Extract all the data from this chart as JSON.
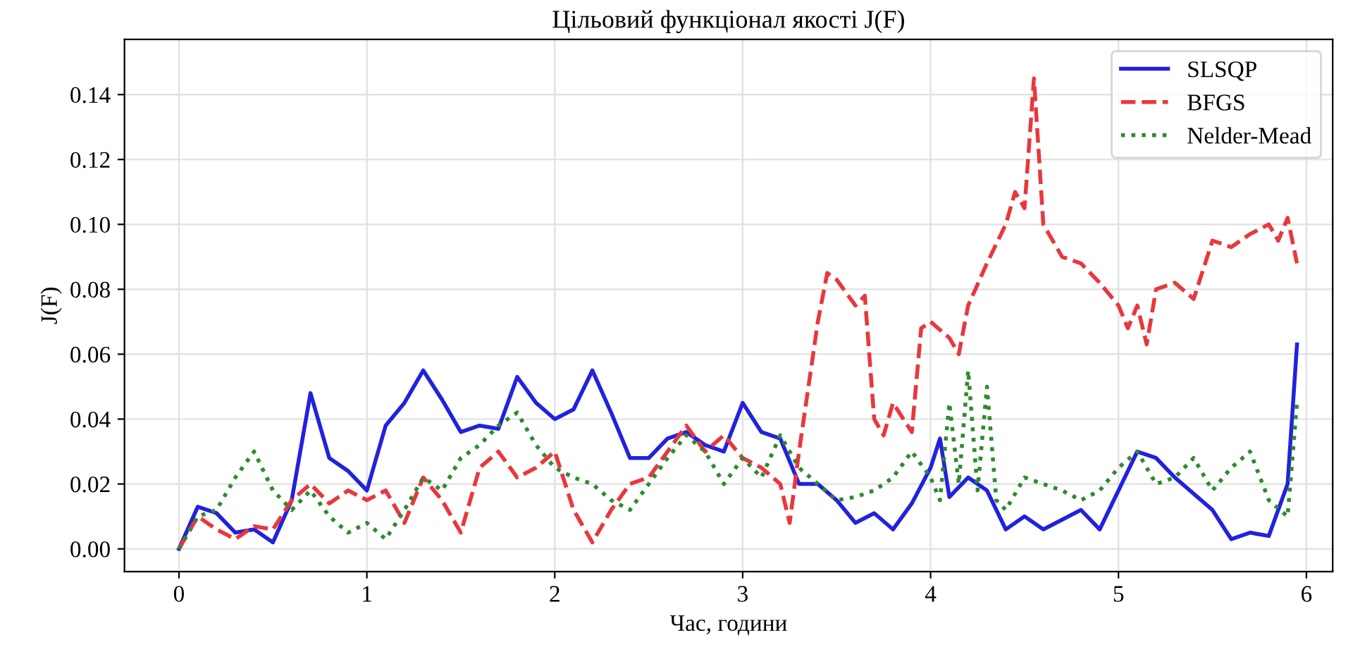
{
  "chart_data": {
    "type": "line",
    "title": "Цільовий функціонал якості J(F)",
    "xlabel": "Час, години",
    "ylabel": "J(F)",
    "xlim": [
      -0.29,
      6.14
    ],
    "ylim": [
      -0.007,
      0.157
    ],
    "xticks": [
      0,
      1,
      2,
      3,
      4,
      5,
      6
    ],
    "yticks": [
      {
        "value": 0,
        "label": "0.00"
      },
      {
        "value": 0.02,
        "label": "0.02"
      },
      {
        "value": 0.04,
        "label": "0.04"
      },
      {
        "value": 0.06,
        "label": "0.06"
      },
      {
        "value": 0.08,
        "label": "0.08"
      },
      {
        "value": 0.1,
        "label": "0.10"
      },
      {
        "value": 0.12,
        "label": "0.12"
      },
      {
        "value": 0.14,
        "label": "0.14"
      }
    ],
    "grid": true,
    "legend": "top right",
    "marker": "none",
    "series": [
      {
        "name": "SLSQP",
        "color": "#2222dd",
        "line_style": "solid",
        "x": [
          0,
          0.1,
          0.2,
          0.3,
          0.4,
          0.5,
          0.6,
          0.7,
          0.8,
          0.9,
          1.0,
          1.1,
          1.2,
          1.3,
          1.4,
          1.5,
          1.6,
          1.7,
          1.8,
          1.9,
          2.0,
          2.1,
          2.2,
          2.3,
          2.4,
          2.5,
          2.6,
          2.7,
          2.8,
          2.9,
          3.0,
          3.1,
          3.2,
          3.3,
          3.4,
          3.5,
          3.6,
          3.7,
          3.8,
          3.9,
          4.0,
          4.05,
          4.1,
          4.2,
          4.3,
          4.4,
          4.5,
          4.6,
          4.7,
          4.8,
          4.9,
          5.0,
          5.1,
          5.2,
          5.3,
          5.4,
          5.5,
          5.6,
          5.7,
          5.8,
          5.9,
          5.95
        ],
        "values": [
          0.0,
          0.013,
          0.011,
          0.005,
          0.006,
          0.002,
          0.015,
          0.048,
          0.028,
          0.024,
          0.018,
          0.038,
          0.045,
          0.055,
          0.046,
          0.036,
          0.038,
          0.037,
          0.053,
          0.045,
          0.04,
          0.043,
          0.055,
          0.042,
          0.028,
          0.028,
          0.034,
          0.036,
          0.032,
          0.03,
          0.045,
          0.036,
          0.034,
          0.02,
          0.02,
          0.015,
          0.008,
          0.011,
          0.006,
          0.014,
          0.025,
          0.034,
          0.016,
          0.022,
          0.018,
          0.006,
          0.01,
          0.006,
          0.009,
          0.012,
          0.006,
          0.018,
          0.03,
          0.028,
          0.022,
          0.017,
          0.012,
          0.003,
          0.005,
          0.004,
          0.02,
          0.063
        ]
      },
      {
        "name": "BFGS",
        "color": "#e8383d",
        "line_style": "dashed",
        "x": [
          0,
          0.1,
          0.2,
          0.3,
          0.4,
          0.5,
          0.6,
          0.7,
          0.8,
          0.9,
          1.0,
          1.1,
          1.2,
          1.3,
          1.4,
          1.5,
          1.6,
          1.7,
          1.8,
          1.9,
          2.0,
          2.1,
          2.2,
          2.3,
          2.4,
          2.5,
          2.6,
          2.7,
          2.8,
          2.9,
          3.0,
          3.1,
          3.2,
          3.25,
          3.3,
          3.4,
          3.45,
          3.5,
          3.6,
          3.65,
          3.7,
          3.75,
          3.8,
          3.9,
          3.95,
          4.0,
          4.1,
          4.15,
          4.2,
          4.3,
          4.4,
          4.45,
          4.5,
          4.55,
          4.6,
          4.7,
          4.8,
          4.9,
          5.0,
          5.05,
          5.1,
          5.15,
          5.2,
          5.3,
          5.4,
          5.5,
          5.6,
          5.7,
          5.8,
          5.85,
          5.9,
          5.95
        ],
        "values": [
          0,
          0.01,
          0.006,
          0.003,
          0.007,
          0.006,
          0.015,
          0.02,
          0.014,
          0.018,
          0.015,
          0.018,
          0.008,
          0.022,
          0.015,
          0.005,
          0.025,
          0.03,
          0.022,
          0.025,
          0.03,
          0.012,
          0.002,
          0.012,
          0.02,
          0.022,
          0.03,
          0.038,
          0.03,
          0.035,
          0.028,
          0.025,
          0.02,
          0.008,
          0.03,
          0.07,
          0.085,
          0.083,
          0.075,
          0.078,
          0.04,
          0.035,
          0.045,
          0.036,
          0.068,
          0.07,
          0.065,
          0.06,
          0.075,
          0.088,
          0.1,
          0.11,
          0.105,
          0.145,
          0.1,
          0.09,
          0.088,
          0.082,
          0.075,
          0.068,
          0.075,
          0.063,
          0.08,
          0.082,
          0.077,
          0.095,
          0.093,
          0.097,
          0.1,
          0.095,
          0.102,
          0.088
        ]
      },
      {
        "name": "Nelder-Mead",
        "color": "#2e8b2e",
        "line_style": "dotted",
        "x": [
          0,
          0.1,
          0.2,
          0.3,
          0.4,
          0.5,
          0.6,
          0.7,
          0.8,
          0.9,
          1.0,
          1.1,
          1.2,
          1.3,
          1.4,
          1.5,
          1.6,
          1.7,
          1.8,
          1.9,
          2.0,
          2.1,
          2.2,
          2.3,
          2.4,
          2.5,
          2.6,
          2.7,
          2.8,
          2.9,
          3.0,
          3.1,
          3.2,
          3.3,
          3.4,
          3.5,
          3.6,
          3.7,
          3.8,
          3.9,
          4.0,
          4.05,
          4.1,
          4.15,
          4.2,
          4.25,
          4.3,
          4.35,
          4.4,
          4.5,
          4.6,
          4.7,
          4.8,
          4.9,
          5.0,
          5.1,
          5.2,
          5.3,
          5.4,
          5.5,
          5.6,
          5.7,
          5.8,
          5.9,
          5.95
        ],
        "values": [
          0,
          0.01,
          0.012,
          0.022,
          0.03,
          0.018,
          0.012,
          0.018,
          0.01,
          0.005,
          0.008,
          0.003,
          0.012,
          0.022,
          0.018,
          0.028,
          0.032,
          0.038,
          0.042,
          0.032,
          0.025,
          0.022,
          0.02,
          0.015,
          0.012,
          0.02,
          0.028,
          0.035,
          0.03,
          0.02,
          0.028,
          0.022,
          0.035,
          0.025,
          0.02,
          0.015,
          0.016,
          0.018,
          0.022,
          0.03,
          0.022,
          0.015,
          0.045,
          0.02,
          0.055,
          0.018,
          0.05,
          0.015,
          0.012,
          0.022,
          0.02,
          0.018,
          0.015,
          0.018,
          0.025,
          0.03,
          0.02,
          0.022,
          0.028,
          0.018,
          0.025,
          0.03,
          0.015,
          0.01,
          0.045
        ]
      }
    ]
  }
}
